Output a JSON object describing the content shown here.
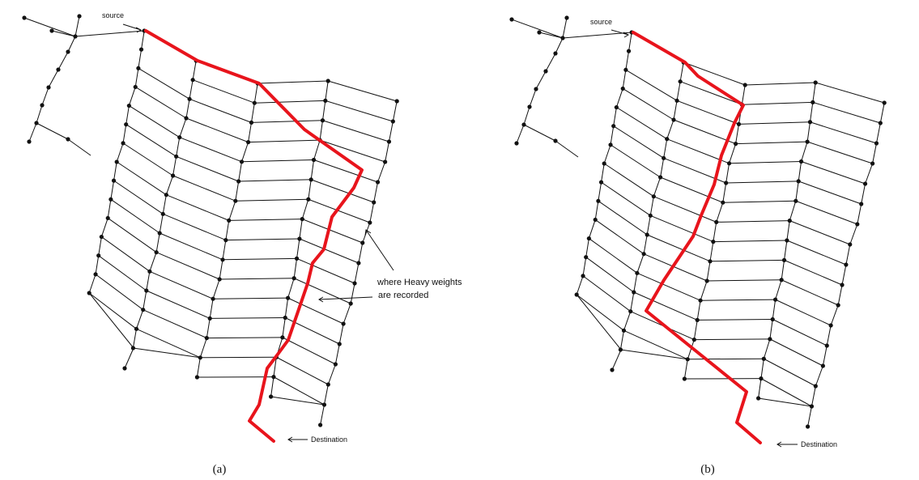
{
  "panels": [
    {
      "id": "a",
      "caption": "(a)",
      "source_label": "source",
      "destination_label": "Destination",
      "note_line1": "where Heavy weights",
      "note_line2": "are recorded"
    },
    {
      "id": "b",
      "caption": "(b)",
      "source_label": "source",
      "destination_label": "Destination"
    }
  ],
  "colors": {
    "route": "#e8141c",
    "network": "#111111"
  }
}
